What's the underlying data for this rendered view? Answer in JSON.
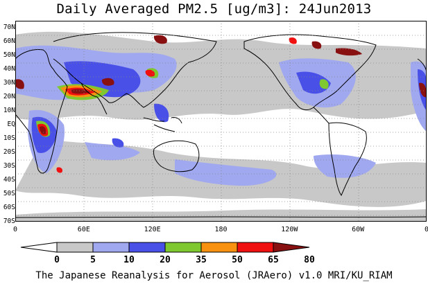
{
  "title": "Daily Averaged PM2.5 [ug/m3]: 24Jun2013",
  "lat_labels": [
    "70N",
    "60N",
    "50N",
    "40N",
    "30N",
    "20N",
    "10N",
    "EQ",
    "10S",
    "20S",
    "30S",
    "40S",
    "50S",
    "60S",
    "70S"
  ],
  "lon_labels": [
    "0",
    "60E",
    "120E",
    "180",
    "120W",
    "60W",
    "0"
  ],
  "colorbar": {
    "levels": [
      "0",
      "5",
      "10",
      "20",
      "35",
      "50",
      "65",
      "80"
    ],
    "colors": [
      "#ffffff",
      "#c8c8c8",
      "#a0a8f0",
      "#4850e8",
      "#80c830",
      "#f89010",
      "#f01010",
      "#881010"
    ]
  },
  "footer": "The Japanese Reanalysis for Aerosol (JRAero) v1.0 MRI/KU_RIAM"
}
